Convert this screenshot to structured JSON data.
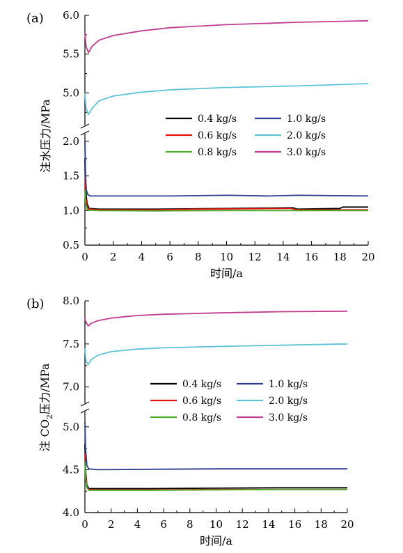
{
  "chart_data": [
    {
      "type": "line",
      "panel_label": "(a)",
      "xlabel": "时间/a",
      "ylabel": "注水压力/MPa",
      "ylabel_parts": [
        "注水压力/MPa"
      ],
      "xlim": [
        0,
        20
      ],
      "ylim_lower": [
        0.5,
        2.1
      ],
      "ylim_upper": [
        4.6,
        6.0
      ],
      "axis_break": true,
      "x_ticks": [
        "0",
        "2",
        "4",
        "6",
        "8",
        "10",
        "12",
        "14",
        "16",
        "18",
        "20"
      ],
      "y_ticks_lower": [
        "0.5",
        "1.0",
        "1.5",
        "2.0"
      ],
      "y_ticks_upper": [
        "5.0",
        "5.5",
        "6.0"
      ],
      "legend_position": "center-right",
      "series": [
        {
          "name": "0.4 kg/s",
          "color": "#000000",
          "points": [
            [
              0,
              1.75
            ],
            [
              0.05,
              1.3
            ],
            [
              0.15,
              1.1
            ],
            [
              0.3,
              1.03
            ],
            [
              1,
              1.02
            ],
            [
              5,
              1.02
            ],
            [
              10,
              1.03
            ],
            [
              14.7,
              1.04
            ],
            [
              15,
              1.02
            ],
            [
              18,
              1.03
            ],
            [
              18.2,
              1.05
            ],
            [
              20,
              1.05
            ]
          ]
        },
        {
          "name": "0.6 kg/s",
          "color": "#e3120b",
          "points": [
            [
              0,
              1.6
            ],
            [
              0.05,
              1.2
            ],
            [
              0.15,
              1.05
            ],
            [
              0.3,
              1.02
            ],
            [
              1,
              1.01
            ],
            [
              5,
              1.01
            ],
            [
              8,
              1.02
            ],
            [
              14.5,
              1.03
            ],
            [
              15,
              1.01
            ],
            [
              20,
              1.01
            ]
          ]
        },
        {
          "name": "0.8 kg/s",
          "color": "#4bab2b",
          "points": [
            [
              0,
              1.3
            ],
            [
              0.05,
              1.1
            ],
            [
              0.15,
              1.02
            ],
            [
              0.3,
              1.005
            ],
            [
              1,
              1.0
            ],
            [
              5,
              0.995
            ],
            [
              10,
              1.0
            ],
            [
              15,
              1.0
            ],
            [
              20,
              1.0
            ]
          ]
        },
        {
          "name": "1.0 kg/s",
          "color": "#2b3a93",
          "points": [
            [
              0,
              2.0
            ],
            [
              0.05,
              1.5
            ],
            [
              0.1,
              1.3
            ],
            [
              0.2,
              1.23
            ],
            [
              0.4,
              1.21
            ],
            [
              2,
              1.21
            ],
            [
              6,
              1.21
            ],
            [
              10,
              1.22
            ],
            [
              13,
              1.21
            ],
            [
              15,
              1.22
            ],
            [
              20,
              1.21
            ]
          ]
        },
        {
          "name": "2.0 kg/s",
          "color": "#5ec3d6",
          "points": [
            [
              0,
              5.0
            ],
            [
              0.08,
              4.8
            ],
            [
              0.25,
              4.72
            ],
            [
              0.5,
              4.8
            ],
            [
              1,
              4.9
            ],
            [
              2,
              4.96
            ],
            [
              4,
              5.01
            ],
            [
              6,
              5.04
            ],
            [
              10,
              5.07
            ],
            [
              15,
              5.09
            ],
            [
              20,
              5.12
            ]
          ]
        },
        {
          "name": "3.0 kg/s",
          "color": "#c13c8f",
          "points": [
            [
              0,
              5.78
            ],
            [
              0.08,
              5.6
            ],
            [
              0.25,
              5.52
            ],
            [
              0.5,
              5.6
            ],
            [
              1,
              5.68
            ],
            [
              2,
              5.74
            ],
            [
              4,
              5.8
            ],
            [
              6,
              5.84
            ],
            [
              10,
              5.88
            ],
            [
              15,
              5.91
            ],
            [
              20,
              5.93
            ]
          ]
        }
      ]
    },
    {
      "type": "line",
      "panel_label": "(b)",
      "xlabel": "时间/a",
      "ylabel": "注 CO2压力/MPa",
      "ylabel_parts": [
        "注 CO",
        "2",
        "压力/MPa"
      ],
      "xlim": [
        0,
        20
      ],
      "ylim_lower": [
        4.0,
        5.08
      ],
      "ylim_upper": [
        6.9,
        8.0
      ],
      "axis_break": true,
      "x_ticks": [
        "0",
        "2",
        "4",
        "6",
        "8",
        "10",
        "12",
        "14",
        "16",
        "18",
        "20"
      ],
      "y_ticks_lower": [
        "4.0",
        "4.5",
        "5.0"
      ],
      "y_ticks_upper": [
        "7.0",
        "7.5",
        "8.0"
      ],
      "legend_position": "center-right",
      "series": [
        {
          "name": "0.4 kg/s",
          "color": "#000000",
          "points": [
            [
              0,
              4.8
            ],
            [
              0.05,
              4.5
            ],
            [
              0.15,
              4.32
            ],
            [
              0.3,
              4.28
            ],
            [
              1,
              4.28
            ],
            [
              5,
              4.28
            ],
            [
              10,
              4.285
            ],
            [
              15,
              4.29
            ],
            [
              20,
              4.29
            ]
          ]
        },
        {
          "name": "0.6 kg/s",
          "color": "#e3120b",
          "points": [
            [
              0,
              4.7
            ],
            [
              0.05,
              4.45
            ],
            [
              0.15,
              4.3
            ],
            [
              0.3,
              4.27
            ],
            [
              1,
              4.265
            ],
            [
              5,
              4.265
            ],
            [
              10,
              4.27
            ],
            [
              15,
              4.27
            ],
            [
              20,
              4.27
            ]
          ]
        },
        {
          "name": "0.8 kg/s",
          "color": "#4bab2b",
          "points": [
            [
              0,
              4.6
            ],
            [
              0.05,
              4.4
            ],
            [
              0.15,
              4.29
            ],
            [
              0.3,
              4.26
            ],
            [
              1,
              4.26
            ],
            [
              5,
              4.26
            ],
            [
              10,
              4.265
            ],
            [
              15,
              4.27
            ],
            [
              20,
              4.27
            ]
          ]
        },
        {
          "name": "1.0 kg/s",
          "color": "#2b3a93",
          "points": [
            [
              0,
              5.05
            ],
            [
              0.05,
              4.75
            ],
            [
              0.15,
              4.55
            ],
            [
              0.3,
              4.51
            ],
            [
              1,
              4.5
            ],
            [
              5,
              4.505
            ],
            [
              10,
              4.51
            ],
            [
              15,
              4.51
            ],
            [
              20,
              4.51
            ]
          ]
        },
        {
          "name": "2.0 kg/s",
          "color": "#5ec3d6",
          "points": [
            [
              0,
              7.45
            ],
            [
              0.08,
              7.3
            ],
            [
              0.25,
              7.26
            ],
            [
              0.5,
              7.32
            ],
            [
              1,
              7.37
            ],
            [
              2,
              7.41
            ],
            [
              4,
              7.44
            ],
            [
              6,
              7.455
            ],
            [
              10,
              7.47
            ],
            [
              15,
              7.485
            ],
            [
              20,
              7.5
            ]
          ]
        },
        {
          "name": "3.0 kg/s",
          "color": "#c13c8f",
          "points": [
            [
              0,
              7.8
            ],
            [
              0.08,
              7.75
            ],
            [
              0.25,
              7.71
            ],
            [
              0.5,
              7.74
            ],
            [
              1,
              7.77
            ],
            [
              2,
              7.8
            ],
            [
              4,
              7.83
            ],
            [
              6,
              7.845
            ],
            [
              10,
              7.86
            ],
            [
              15,
              7.875
            ],
            [
              20,
              7.88
            ]
          ]
        }
      ]
    }
  ]
}
